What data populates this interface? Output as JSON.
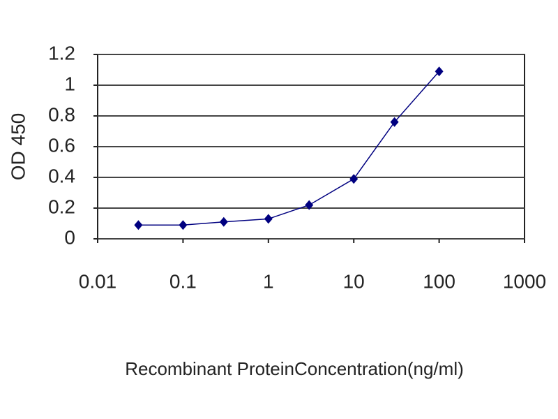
{
  "chart_data": {
    "type": "line",
    "xlabel": "Recombinant ProteinConcentration(ng/ml)",
    "ylabel": "OD 450",
    "x": [
      0.03,
      0.1,
      0.3,
      1,
      3,
      10,
      30,
      100
    ],
    "values": [
      0.09,
      0.09,
      0.11,
      0.13,
      0.22,
      0.39,
      0.76,
      1.09
    ],
    "color": "#000080",
    "xscale": "log",
    "xlim": [
      0.01,
      1000
    ],
    "xticks": [
      0.01,
      0.1,
      1,
      10,
      100,
      1000
    ],
    "ylim": [
      0,
      1.2
    ],
    "yticks": [
      0,
      0.2,
      0.4,
      0.6,
      0.8,
      1,
      1.2
    ],
    "grid": true
  }
}
